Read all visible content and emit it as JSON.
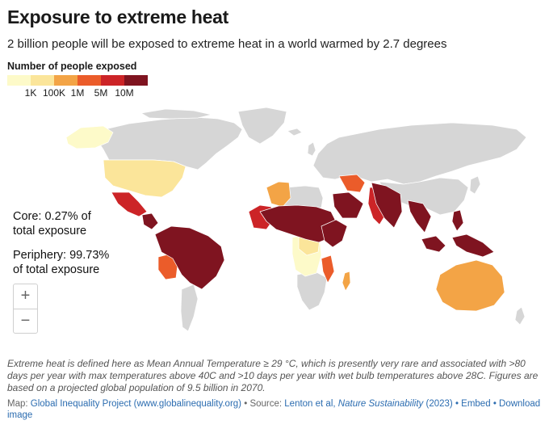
{
  "title": "Exposure to extreme heat",
  "subtitle": "2 billion people will be exposed to extreme heat in a world warmed by 2.7 degrees",
  "legend": {
    "title": "Number of people exposed",
    "colors": [
      "#fdfac9",
      "#fbe59a",
      "#f3a446",
      "#eb5c2a",
      "#cc2427",
      "#7f1420"
    ],
    "ticks": [
      "1K",
      "100K",
      "1M",
      "5M",
      "10M"
    ]
  },
  "annotations": {
    "core_line1": "Core: 0.27% of",
    "core_line2": "total exposure",
    "periphery_line1": "Periphery: 99.73%",
    "periphery_line2": "of total exposure"
  },
  "zoom": {
    "in": "+",
    "out": "−"
  },
  "note": "Extreme heat is defined here as Mean Annual Temperature ≥ 29 °C, which is presently very rare and associated with >80 days per year with max temperatures above 40C and >10 days per year with wet bulb temperatures above 28C. Figures are based on a projected global population of 9.5 billion in 2070.",
  "footer": {
    "map_prefix": "Map:",
    "map_source": "Global Inequality Project (www.globalinequality.org)",
    "source_prefix": "• Source:",
    "source_text": "Lenton et al,",
    "source_journal": "Nature Sustainability",
    "source_year": "(2023)",
    "embed": "• Embed",
    "download": "• Download image"
  },
  "colors": {
    "no_data": "#d6d6d6",
    "border": "#ffffff"
  }
}
